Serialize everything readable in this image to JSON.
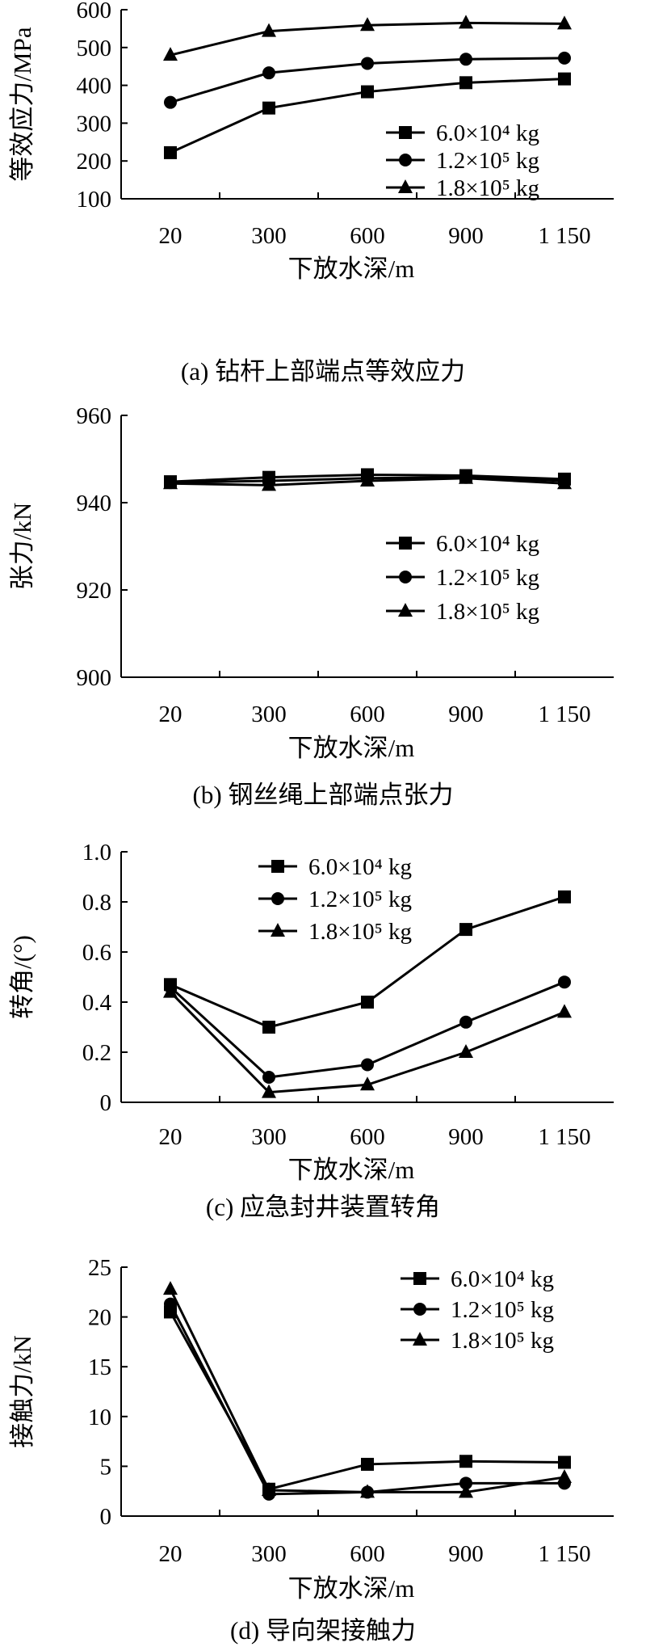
{
  "chart_data": [
    {
      "type": "line",
      "panel": "a",
      "categories": [
        "20",
        "300",
        "600",
        "900",
        "1 150"
      ],
      "x": [
        20,
        300,
        600,
        900,
        1150
      ],
      "ylabel": "等效应力/MPa",
      "xlabel": "下放水深/m",
      "caption": "(a) 钻杆上部端点等效应力",
      "ylim": [
        100,
        600
      ],
      "yticks": [
        "100",
        "200",
        "300",
        "400",
        "500",
        "600"
      ],
      "legend_position": "bottom-right",
      "grid": false,
      "series": [
        {
          "name": "6.0×10⁴ kg",
          "marker": "square",
          "values": [
            222,
            340,
            383,
            407,
            417
          ]
        },
        {
          "name": "1.2×10⁵ kg",
          "marker": "circle",
          "values": [
            355,
            433,
            458,
            469,
            472
          ]
        },
        {
          "name": "1.8×10⁵ kg",
          "marker": "triangle",
          "values": [
            480,
            543,
            559,
            565,
            563
          ]
        }
      ]
    },
    {
      "type": "line",
      "panel": "b",
      "categories": [
        "20",
        "300",
        "600",
        "900",
        "1 150"
      ],
      "x": [
        20,
        300,
        600,
        900,
        1150
      ],
      "ylabel": "张力/kN",
      "xlabel": "下放水深/m",
      "caption": "(b) 钢丝绳上部端点张力",
      "ylim": [
        900,
        960
      ],
      "yticks": [
        "900",
        "920",
        "940",
        "960"
      ],
      "legend_position": "bottom-right",
      "grid": false,
      "series": [
        {
          "name": "6.0×10⁴ kg",
          "marker": "square",
          "values": [
            944.8,
            945.8,
            946.4,
            946.2,
            945.4
          ]
        },
        {
          "name": "1.2×10⁵ kg",
          "marker": "circle",
          "values": [
            944.6,
            945.0,
            945.6,
            945.8,
            945.0
          ]
        },
        {
          "name": "1.8×10⁵ kg",
          "marker": "triangle",
          "values": [
            944.4,
            944.0,
            945.0,
            945.6,
            944.4
          ]
        }
      ]
    },
    {
      "type": "line",
      "panel": "c",
      "categories": [
        "20",
        "300",
        "600",
        "900",
        "1 150"
      ],
      "x": [
        20,
        300,
        600,
        900,
        1150
      ],
      "ylabel": "转角/(°)",
      "xlabel": "下放水深/m",
      "caption": "(c) 应急封井装置转角",
      "ylim": [
        0,
        1.0
      ],
      "yticks": [
        "0",
        "0.2",
        "0.4",
        "0.6",
        "0.8",
        "1.0"
      ],
      "legend_position": "top",
      "grid": false,
      "series": [
        {
          "name": "6.0×10⁴ kg",
          "marker": "square",
          "values": [
            0.47,
            0.3,
            0.4,
            0.69,
            0.82
          ]
        },
        {
          "name": "1.2×10⁵ kg",
          "marker": "circle",
          "values": [
            0.46,
            0.1,
            0.15,
            0.32,
            0.48
          ]
        },
        {
          "name": "1.8×10⁵ kg",
          "marker": "triangle",
          "values": [
            0.44,
            0.04,
            0.07,
            0.2,
            0.36
          ]
        }
      ]
    },
    {
      "type": "line",
      "panel": "d",
      "categories": [
        "20",
        "300",
        "600",
        "900",
        "1 150"
      ],
      "x": [
        20,
        300,
        600,
        900,
        1150
      ],
      "ylabel": "接触力/kN",
      "xlabel": "下放水深/m",
      "caption": "(d) 导向架接触力",
      "ylim": [
        0,
        25
      ],
      "yticks": [
        "0",
        "5",
        "10",
        "15",
        "20",
        "25"
      ],
      "legend_position": "top-right",
      "grid": false,
      "series": [
        {
          "name": "6.0×10⁴ kg",
          "marker": "square",
          "values": [
            20.5,
            2.7,
            5.2,
            5.5,
            5.4
          ]
        },
        {
          "name": "1.2×10⁵ kg",
          "marker": "circle",
          "values": [
            21.3,
            2.2,
            2.4,
            3.3,
            3.3
          ]
        },
        {
          "name": "1.8×10⁵ kg",
          "marker": "triangle",
          "values": [
            22.8,
            2.6,
            2.4,
            2.4,
            3.9
          ]
        }
      ]
    }
  ]
}
